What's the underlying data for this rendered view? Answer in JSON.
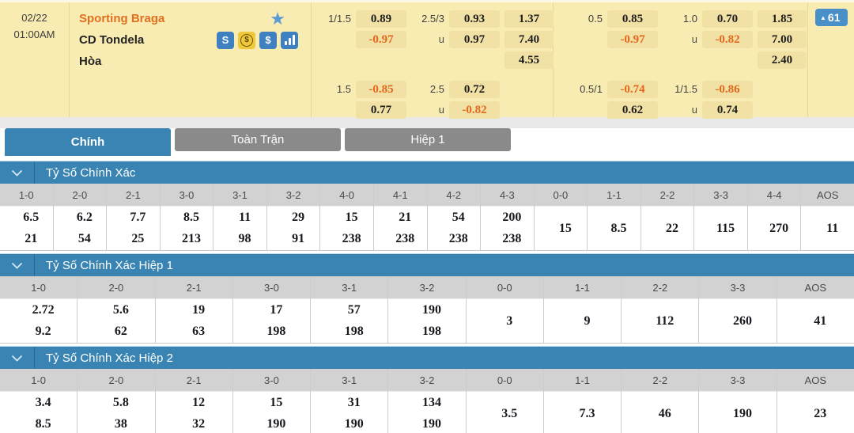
{
  "match": {
    "date": "02/22",
    "time": "01:00AM",
    "home_team": "Sporting Braga",
    "away_team": "CD Tondela",
    "draw_label": "Hòa",
    "badge_arrow": "▲",
    "badge_value": "61"
  },
  "icons": {
    "star": "★",
    "tracker": "S",
    "dollar": "$",
    "exchange_dollar": "$"
  },
  "odds": {
    "blocks": [
      {
        "main": {
          "hdp_line": "1/1.5",
          "hdp_home": "0.89",
          "hdp_away": "-0.97",
          "ou_line": "2.5/3",
          "ou_over": "0.93",
          "u_label": "u",
          "ou_under": "0.97",
          "x12_home": "1.37",
          "x12_away": "7.40",
          "x12_draw": "4.55"
        },
        "alt": {
          "hdp_line": "1.5",
          "hdp_home": "-0.85",
          "hdp_away": "0.77",
          "ou_line": "2.5",
          "ou_over": "0.72",
          "u_label": "u",
          "ou_under": "-0.82"
        }
      },
      {
        "main": {
          "hdp_line": "0.5",
          "hdp_home": "0.85",
          "hdp_away": "-0.97",
          "ou_line": "1.0",
          "ou_over": "0.70",
          "u_label": "u",
          "ou_under": "-0.82",
          "x12_home": "1.85",
          "x12_away": "7.00",
          "x12_draw": "2.40"
        },
        "alt": {
          "hdp_line": "0.5/1",
          "hdp_home": "-0.74",
          "hdp_away": "0.62",
          "ou_line": "1/1.5",
          "ou_over": "-0.86",
          "u_label": "u",
          "ou_under": "0.74"
        }
      }
    ]
  },
  "tabs": [
    {
      "label": "Chính",
      "active": true
    },
    {
      "label": "Toàn Trận",
      "active": false
    },
    {
      "label": "Hiệp 1",
      "active": false
    }
  ],
  "sections": [
    {
      "title": "Tỷ Số Chính Xác",
      "columns": [
        {
          "label": "1-0",
          "values": [
            "6.5",
            "21"
          ]
        },
        {
          "label": "2-0",
          "values": [
            "6.2",
            "54"
          ]
        },
        {
          "label": "2-1",
          "values": [
            "7.7",
            "25"
          ]
        },
        {
          "label": "3-0",
          "values": [
            "8.5",
            "213"
          ]
        },
        {
          "label": "3-1",
          "values": [
            "11",
            "98"
          ]
        },
        {
          "label": "3-2",
          "values": [
            "29",
            "91"
          ]
        },
        {
          "label": "4-0",
          "values": [
            "15",
            "238"
          ]
        },
        {
          "label": "4-1",
          "values": [
            "21",
            "238"
          ]
        },
        {
          "label": "4-2",
          "values": [
            "54",
            "238"
          ]
        },
        {
          "label": "4-3",
          "values": [
            "200",
            "238"
          ]
        },
        {
          "label": "0-0",
          "values": [
            "15"
          ]
        },
        {
          "label": "1-1",
          "values": [
            "8.5"
          ]
        },
        {
          "label": "2-2",
          "values": [
            "22"
          ]
        },
        {
          "label": "3-3",
          "values": [
            "115"
          ]
        },
        {
          "label": "4-4",
          "values": [
            "270"
          ]
        },
        {
          "label": "AOS",
          "values": [
            "11"
          ]
        }
      ]
    },
    {
      "title": "Tỷ Số Chính Xác Hiệp 1",
      "columns": [
        {
          "label": "1-0",
          "values": [
            "2.72",
            "9.2"
          ]
        },
        {
          "label": "2-0",
          "values": [
            "5.6",
            "62"
          ]
        },
        {
          "label": "2-1",
          "values": [
            "19",
            "63"
          ]
        },
        {
          "label": "3-0",
          "values": [
            "17",
            "198"
          ]
        },
        {
          "label": "3-1",
          "values": [
            "57",
            "198"
          ]
        },
        {
          "label": "3-2",
          "values": [
            "190",
            "198"
          ]
        },
        {
          "label": "0-0",
          "values": [
            "3"
          ]
        },
        {
          "label": "1-1",
          "values": [
            "9"
          ]
        },
        {
          "label": "2-2",
          "values": [
            "112"
          ]
        },
        {
          "label": "3-3",
          "values": [
            "260"
          ]
        },
        {
          "label": "AOS",
          "values": [
            "41"
          ]
        }
      ]
    },
    {
      "title": "Tỷ Số Chính Xác Hiệp 2",
      "columns": [
        {
          "label": "1-0",
          "values": [
            "3.4",
            "8.5"
          ]
        },
        {
          "label": "2-0",
          "values": [
            "5.8",
            "38"
          ]
        },
        {
          "label": "2-1",
          "values": [
            "12",
            "32"
          ]
        },
        {
          "label": "3-0",
          "values": [
            "15",
            "190"
          ]
        },
        {
          "label": "3-1",
          "values": [
            "31",
            "190"
          ]
        },
        {
          "label": "3-2",
          "values": [
            "134",
            "190"
          ]
        },
        {
          "label": "0-0",
          "values": [
            "3.5"
          ]
        },
        {
          "label": "1-1",
          "values": [
            "7.3"
          ]
        },
        {
          "label": "2-2",
          "values": [
            "46"
          ]
        },
        {
          "label": "3-3",
          "values": [
            "190"
          ]
        },
        {
          "label": "AOS",
          "values": [
            "23"
          ]
        }
      ]
    }
  ],
  "colors": {
    "accent_blue": "#3a84b3",
    "tab_inactive_gray": "#8a8a8a",
    "panel_yellow": "#f9ecb2",
    "odds_box_tan": "#f2e1a5",
    "negative_odds_orange": "#e2671c",
    "home_team_orange": "#e0701f",
    "favorite_star_blue": "#5b9bd5",
    "badge_blue": "#4a90c8"
  }
}
